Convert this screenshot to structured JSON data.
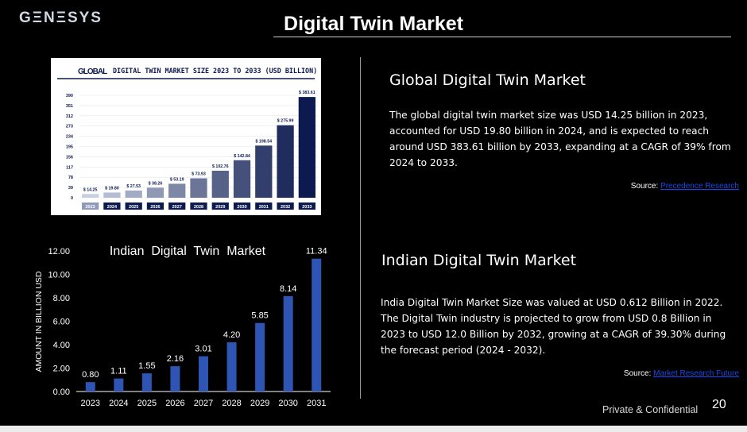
{
  "header": {
    "logo": "GΞNΞSYS",
    "title": "Digital Twin Market"
  },
  "global_section": {
    "heading": "Global Digital Twin Market",
    "paragraph": "The global digital twin market size was USD 14.25 billion in 2023, accounted for USD 19.80 billion in 2024, and is expected to reach around USD 383.61 billion by 2033, expanding at a CAGR of 39% from 2024 to 2033.",
    "source_label": "Source:",
    "source_link": "Precedence Research"
  },
  "indian_section": {
    "heading": "Indian Digital Twin Market",
    "paragraph": "India Digital Twin Market Size was valued at USD 0.612 Billion in 2022. The Digital Twin industry is projected to grow from USD 0.8 Billion in 2023 to USD 12.0 Billion by 2032, growing at a CAGR of 39.30% during the forecast period (2024 - 2032).",
    "source_label": "Source:",
    "source_link": "Market Research Future"
  },
  "footer": {
    "confidential": "Private & Confidential",
    "page": "20"
  },
  "chart_data": [
    {
      "type": "bar",
      "title_prefix": "GLOBAL",
      "title": "DIGITAL TWIN MARKET SIZE 2023 TO 2033 (USD BILLION)",
      "categories": [
        "2023",
        "2024",
        "2025",
        "2026",
        "2027",
        "2028",
        "2029",
        "2030",
        "2031",
        "2032",
        "2033"
      ],
      "values": [
        14.25,
        19.8,
        27.53,
        38.26,
        53.19,
        73.93,
        102.76,
        142.84,
        198.54,
        275.99,
        383.61
      ],
      "data_labels": [
        "$ 14.25",
        "$ 19.80",
        "$ 27.53",
        "$ 38.26",
        "$ 53.19",
        "$ 73.93",
        "$ 102.76",
        "$ 142.84",
        "$ 198.54",
        "$ 275.99",
        "$ 383.61"
      ],
      "yticks": [
        "0",
        "39",
        "78",
        "117",
        "156",
        "195",
        "234",
        "273",
        "312",
        "351",
        "390"
      ],
      "ylim": [
        0,
        390
      ],
      "bar_color_start": "#c7cfe0",
      "bar_color_end": "#0d1a4f"
    },
    {
      "type": "bar",
      "title": "Indian  Digital  Twin  Market",
      "ylabel": "AMOUNT IN BILLION USD",
      "categories": [
        "2023",
        "2024",
        "2025",
        "2026",
        "2027",
        "2028",
        "2029",
        "2030",
        "2031"
      ],
      "values": [
        0.8,
        1.11,
        1.55,
        2.16,
        3.01,
        4.2,
        5.85,
        8.14,
        11.34
      ],
      "data_labels": [
        "0.80",
        "1.11",
        "1.55",
        "2.16",
        "3.01",
        "4.20",
        "5.85",
        "8.14",
        "11.34"
      ],
      "yticks": [
        "0.00",
        "2.00",
        "4.00",
        "6.00",
        "8.00",
        "10.00",
        "12.00"
      ],
      "ylim": [
        0,
        12
      ],
      "bar_color": "#2f55b4"
    }
  ]
}
